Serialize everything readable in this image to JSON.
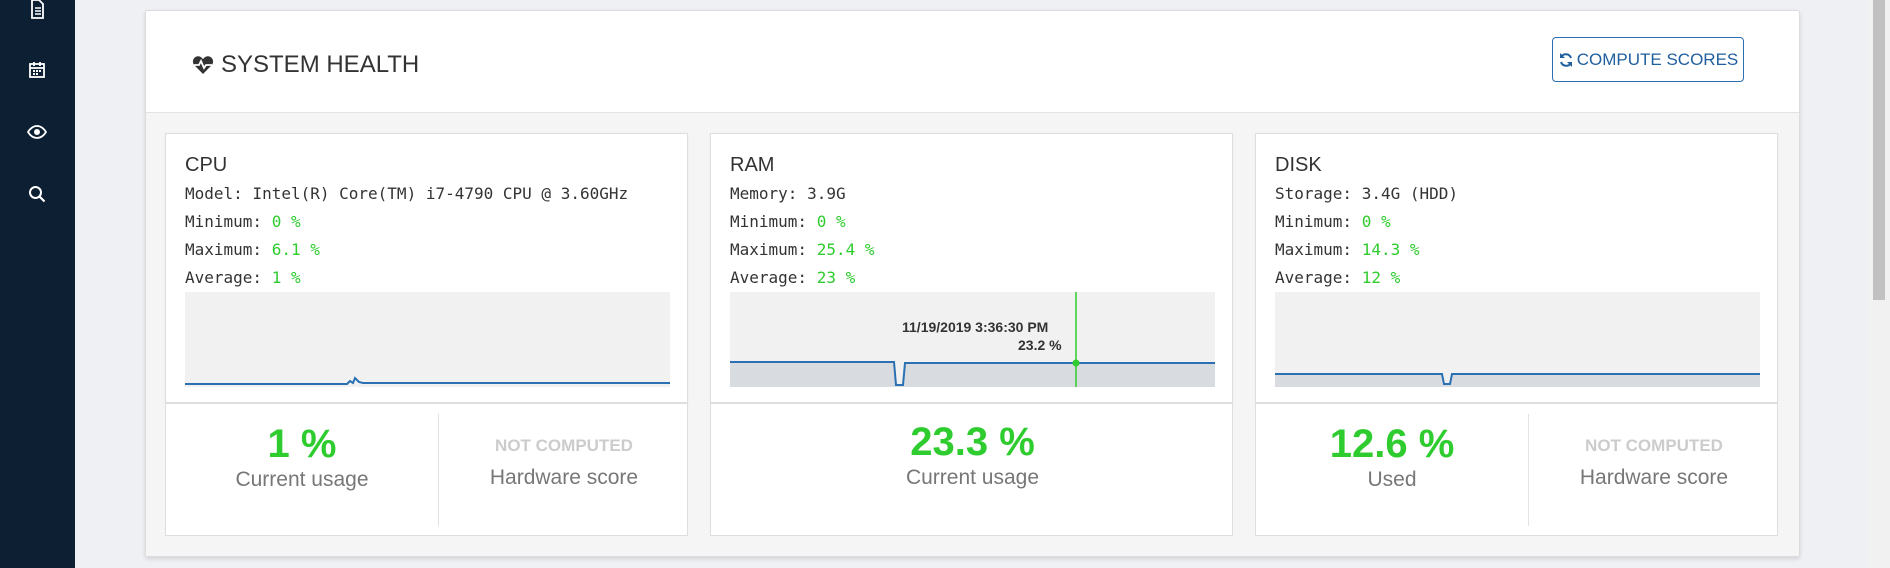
{
  "header": {
    "title": "SYSTEM HEALTH",
    "compute_button": "COMPUTE SCORES"
  },
  "cards": {
    "cpu": {
      "name": "CPU",
      "line1_label": "Model: ",
      "line1_value": "Intel(R) Core(TM) i7-4790 CPU @ 3.60GHz",
      "min_label": "Minimum: ",
      "min": "0 %",
      "max_label": "Maximum: ",
      "max": "6.1 %",
      "avg_label": "Average: ",
      "avg": "1 %",
      "current": "1 %",
      "current_label": "Current usage",
      "score_status": "NOT COMPUTED",
      "score_label": "Hardware score"
    },
    "ram": {
      "name": "RAM",
      "line1_label": "Memory: ",
      "line1_value": "3.9G",
      "min_label": "Minimum: ",
      "min": "0 %",
      "max_label": "Maximum: ",
      "max": "25.4 %",
      "avg_label": "Average: ",
      "avg": "23 %",
      "current": "23.3 %",
      "current_label": "Current usage",
      "tooltip_time": "11/19/2019 3:36:30 PM",
      "tooltip_value": "23.2 %"
    },
    "disk": {
      "name": "DISK",
      "line1_label": "Storage: ",
      "line1_value": "3.4G (HDD)",
      "min_label": "Minimum: ",
      "min": "0 %",
      "max_label": "Maximum: ",
      "max": "14.3 %",
      "avg_label": "Average: ",
      "avg": "12 %",
      "current": "12.6 %",
      "current_label": "Used",
      "score_status": "NOT COMPUTED",
      "score_label": "Hardware score"
    }
  },
  "sidebar": {
    "icons": [
      "document-icon",
      "calendar-icon",
      "eye-icon",
      "search-icon"
    ]
  },
  "colors": {
    "accent": "#2a6fb0",
    "good": "#2ecc2e",
    "sidebar": "#0d1f33",
    "series": "#2a70b3"
  }
}
